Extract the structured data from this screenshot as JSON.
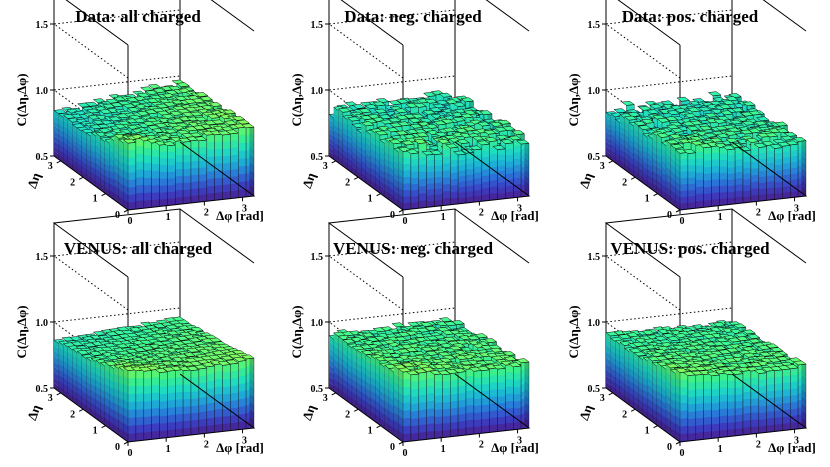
{
  "figure": {
    "layout": "2 rows x 3 columns of 3D lego plots"
  },
  "chart_data": [
    {
      "type": "lego3d",
      "title": "Data: all charged",
      "zlabel": "C(Δη,Δφ)",
      "xlabel": "Δφ [rad]",
      "ylabel": "Δη",
      "xlim": [
        0,
        3.3
      ],
      "ylim": [
        0,
        3.3
      ],
      "zlim": [
        0.5,
        1.75
      ],
      "zticks": [
        "0.5",
        "1.0",
        "1.5"
      ],
      "xticks": [
        "0",
        "1",
        "2",
        "3"
      ],
      "yticks": [
        "0",
        "1",
        "2",
        "3"
      ],
      "surface": {
        "base": 0.9,
        "phi_slope": 0.04,
        "eta_slope": -0.02,
        "near_side_peak": 0.12,
        "peak_width": 0.6,
        "noise": 0.02
      }
    },
    {
      "type": "lego3d",
      "title": "Data: neg. charged",
      "zlabel": "C(Δη,Δφ)",
      "xlabel": "Δφ [rad]",
      "ylabel": "Δη",
      "xlim": [
        0,
        3.3
      ],
      "ylim": [
        0,
        3.3
      ],
      "zlim": [
        0.5,
        1.75
      ],
      "zticks": [
        "0.5",
        "1.0",
        "1.5"
      ],
      "xticks": [
        "0",
        "1",
        "2",
        "3"
      ],
      "yticks": [
        "0",
        "1",
        "2",
        "3"
      ],
      "surface": {
        "base": 0.92,
        "phi_slope": 0.0,
        "eta_slope": -0.02,
        "near_side_peak": 0.05,
        "peak_width": 0.5,
        "noise": 0.05
      }
    },
    {
      "type": "lego3d",
      "title": "Data: pos. charged",
      "zlabel": "C(Δη,Δφ)",
      "xlabel": "Δφ [rad]",
      "ylabel": "Δη",
      "xlim": [
        0,
        3.3
      ],
      "ylim": [
        0,
        3.3
      ],
      "zlim": [
        0.5,
        1.75
      ],
      "zticks": [
        "0.5",
        "1.0",
        "1.5"
      ],
      "xticks": [
        "0",
        "1",
        "2",
        "3"
      ],
      "yticks": [
        "0",
        "1",
        "2",
        "3"
      ],
      "surface": {
        "base": 0.92,
        "phi_slope": 0.0,
        "eta_slope": -0.02,
        "near_side_peak": 0.05,
        "peak_width": 0.5,
        "noise": 0.04
      }
    },
    {
      "type": "lego3d",
      "title": "VENUS: all charged",
      "zlabel": "C(Δη,Δφ)",
      "xlabel": "Δφ [rad]",
      "ylabel": "Δη",
      "xlim": [
        0,
        3.3
      ],
      "ylim": [
        0,
        3.3
      ],
      "zlim": [
        0.5,
        1.75
      ],
      "zticks": [
        "0.5",
        "1.0",
        "1.5"
      ],
      "xticks": [
        "0",
        "1",
        "2",
        "3"
      ],
      "yticks": [
        "0",
        "1",
        "2",
        "3"
      ],
      "surface": {
        "base": 0.96,
        "phi_slope": 0.02,
        "eta_slope": -0.03,
        "near_side_peak": 0.08,
        "peak_width": 0.7,
        "noise": 0.01
      }
    },
    {
      "type": "lego3d",
      "title": "VENUS: neg. charged",
      "zlabel": "C(Δη,Δφ)",
      "xlabel": "Δφ [rad]",
      "ylabel": "Δη",
      "xlim": [
        0,
        3.3
      ],
      "ylim": [
        0,
        3.3
      ],
      "zlim": [
        0.5,
        1.75
      ],
      "zticks": [
        "0.5",
        "1.0",
        "1.5"
      ],
      "xticks": [
        "0",
        "1",
        "2",
        "3"
      ],
      "yticks": [
        "0",
        "1",
        "2",
        "3"
      ],
      "surface": {
        "base": 0.98,
        "phi_slope": 0.0,
        "eta_slope": -0.02,
        "near_side_peak": 0.05,
        "peak_width": 0.6,
        "noise": 0.025
      }
    },
    {
      "type": "lego3d",
      "title": "VENUS: pos. charged",
      "zlabel": "C(Δη,Δφ)",
      "xlabel": "Δφ [rad]",
      "ylabel": "Δη",
      "xlim": [
        0,
        3.3
      ],
      "ylim": [
        0,
        3.3
      ],
      "zlim": [
        0.5,
        1.75
      ],
      "zticks": [
        "0.5",
        "1.0",
        "1.5"
      ],
      "xticks": [
        "0",
        "1",
        "2",
        "3"
      ],
      "yticks": [
        "0",
        "1",
        "2",
        "3"
      ],
      "surface": {
        "base": 0.97,
        "phi_slope": 0.0,
        "eta_slope": -0.02,
        "near_side_peak": 0.05,
        "peak_width": 0.6,
        "noise": 0.02
      }
    }
  ],
  "colors": {
    "palette": [
      "#4a1e8c",
      "#3b3fc4",
      "#2a78d8",
      "#1cb2d6",
      "#1fdcc0",
      "#3cf08a",
      "#7cf85a"
    ],
    "frame": "#000000",
    "edge": "#0a0a0a"
  }
}
